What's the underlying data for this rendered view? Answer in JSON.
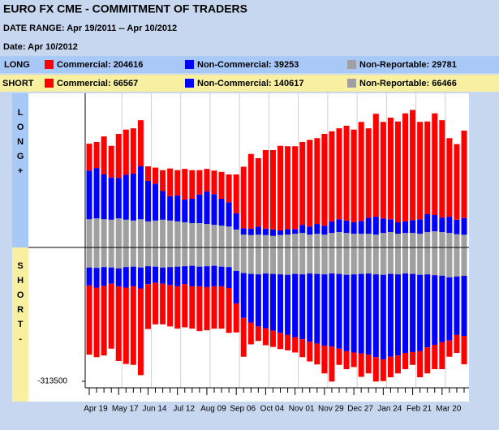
{
  "chart_data": {
    "type": "bar",
    "title": "EURO FX CME - COMMITMENT OF TRADERS",
    "subtitle": "DATE RANGE: Apr 19/2011 -- Apr 10/2012",
    "date_label": "Date: Apr 10/2012",
    "long_label": "LONG",
    "short_label": "SHORT",
    "long_side_label": "LONG+",
    "short_side_label": "SHORT-",
    "long_legend": [
      "Commercial: 204616",
      "Non-Commercial: 39253",
      "Non-Reportable: 29781"
    ],
    "short_legend": [
      "Commercial: 66567",
      "Non-Commercial: 140617",
      "Non-Reportable: 66466"
    ],
    "categories": [
      "Apr 19",
      null,
      null,
      null,
      "May 17",
      null,
      null,
      null,
      "Jun 14",
      null,
      null,
      null,
      "Jul 12",
      null,
      null,
      null,
      "Aug 09",
      null,
      null,
      null,
      "Sep 06",
      null,
      null,
      null,
      "Oct 04",
      null,
      null,
      null,
      "Nov 01",
      null,
      null,
      null,
      "Nov 29",
      null,
      null,
      null,
      "Dec 27",
      null,
      null,
      null,
      "Jan 24",
      null,
      null,
      null,
      "Feb 21",
      null,
      null,
      null,
      "Mar 20",
      null,
      null,
      null
    ],
    "ylim": [
      -313500,
      361000
    ],
    "yticks": [
      -313500
    ],
    "grid": true,
    "series": [
      {
        "color": "#a0a0a0",
        "values": [
          66000,
          68000,
          66000,
          65000,
          68000,
          65000,
          63000,
          66000,
          61000,
          63000,
          65000,
          63000,
          61000,
          59000,
          57000,
          57000,
          55000,
          53000,
          51000,
          49000,
          42000,
          30000,
          29000,
          30000,
          29000,
          27000,
          29000,
          30000,
          32000,
          34000,
          30000,
          32000,
          30000,
          34000,
          36000,
          34000,
          32000,
          32000,
          32000,
          30000,
          34000,
          36000,
          32000,
          34000,
          34000,
          32000,
          36000,
          38000,
          36000,
          34000,
          31000,
          29781
        ]
      },
      {
        "color": "#0000ff",
        "values": [
          114000,
          118000,
          105000,
          99000,
          95000,
          105000,
          110000,
          124000,
          95000,
          86000,
          67000,
          57000,
          61000,
          53000,
          57000,
          67000,
          76000,
          72000,
          63000,
          57000,
          38000,
          15000,
          15000,
          19000,
          15000,
          15000,
          11000,
          13000,
          11000,
          19000,
          19000,
          23000,
          21000,
          27000,
          30000,
          29000,
          27000,
          30000,
          38000,
          42000,
          34000,
          30000,
          27000,
          27000,
          30000,
          34000,
          42000,
          38000,
          34000,
          38000,
          34000,
          39253
        ]
      },
      {
        "color": "#ff0000",
        "values": [
          63000,
          61000,
          89000,
          74000,
          103000,
          106000,
          106000,
          108000,
          34000,
          38000,
          49000,
          65000,
          59000,
          72000,
          67000,
          57000,
          53000,
          55000,
          63000,
          65000,
          91000,
          144000,
          175000,
          160000,
          184000,
          186000,
          198000,
          194000,
          194000,
          194000,
          203000,
          201000,
          215000,
          211000,
          213000,
          222000,
          217000,
          232000,
          209000,
          241000,
          226000,
          238000,
          236000,
          253000,
          258000,
          228000,
          217000,
          238000,
          228000,
          184000,
          177000,
          204616
        ]
      },
      {
        "color": "#a0a0a0",
        "values": [
          -47000,
          -48000,
          -46000,
          -47000,
          -49000,
          -46000,
          -45000,
          -47000,
          -44000,
          -45000,
          -47000,
          -46000,
          -45000,
          -44000,
          -43000,
          -45000,
          -44000,
          -43000,
          -45000,
          -46000,
          -55000,
          -60000,
          -62000,
          -63000,
          -61000,
          -62000,
          -63000,
          -64000,
          -62000,
          -63000,
          -61000,
          -62000,
          -63000,
          -61000,
          -62000,
          -64000,
          -63000,
          -62000,
          -61000,
          -63000,
          -64000,
          -62000,
          -63000,
          -61000,
          -62000,
          -64000,
          -63000,
          -65000,
          -66000,
          -70000,
          -68000,
          -66466
        ]
      },
      {
        "color": "#0000ff",
        "values": [
          -42000,
          -46000,
          -44000,
          -38000,
          -42000,
          -48000,
          -46000,
          -49000,
          -42000,
          -38000,
          -38000,
          -42000,
          -46000,
          -42000,
          -48000,
          -46000,
          -49000,
          -48000,
          -46000,
          -49000,
          -76000,
          -105000,
          -114000,
          -122000,
          -128000,
          -133000,
          -137000,
          -141000,
          -148000,
          -152000,
          -160000,
          -163000,
          -167000,
          -171000,
          -175000,
          -179000,
          -183000,
          -186000,
          -190000,
          -194000,
          -198000,
          -194000,
          -190000,
          -186000,
          -183000,
          -179000,
          -171000,
          -163000,
          -156000,
          -148000,
          -137000,
          -140617
        ]
      },
      {
        "color": "#ff0000",
        "values": [
          -162000,
          -163000,
          -163000,
          -152000,
          -175000,
          -179000,
          -184000,
          -203000,
          -105000,
          -97000,
          -95000,
          -97000,
          -99000,
          -101000,
          -99000,
          -105000,
          -101000,
          -99000,
          -99000,
          -105000,
          -68000,
          -91000,
          -51000,
          -34000,
          -40000,
          -38000,
          -38000,
          -36000,
          -36000,
          -42000,
          -46000,
          -49000,
          -65000,
          -82000,
          -38000,
          -42000,
          -34000,
          -55000,
          -44000,
          -57000,
          -51000,
          -48000,
          -42000,
          -38000,
          -30000,
          -61000,
          -61000,
          -57000,
          -63000,
          -38000,
          -42000,
          -66567
        ]
      }
    ]
  }
}
